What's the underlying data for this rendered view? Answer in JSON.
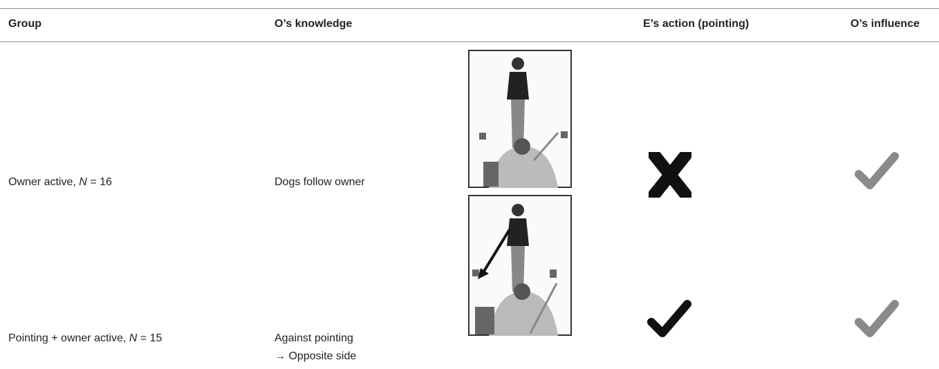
{
  "table": {
    "header": [
      "Group",
      "O’s knowledge",
      "E’s action (pointing)",
      "O’s influence"
    ],
    "rows": [
      {
        "group": [
          "Owner active, ",
          "N",
          " = 16"
        ],
        "knowledge": [
          "Dogs follow owner"
        ]
      },
      {
        "group": [
          "Pointing + owner active, ",
          "N",
          " = 15"
        ],
        "knowledge": [
          "Against pointing",
          "→ Opposite side"
        ]
      }
    ]
  }
}
